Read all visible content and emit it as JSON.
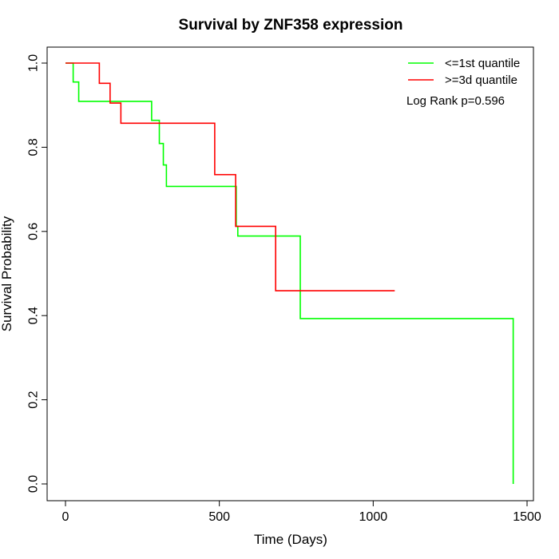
{
  "chart_data": {
    "type": "line",
    "title": "Survival by ZNF358 expression",
    "xlabel": "Time (Days)",
    "ylabel": "Survival Probability",
    "xlim": [
      0,
      1500
    ],
    "ylim": [
      0,
      1
    ],
    "x_ticks": [
      0,
      500,
      1000,
      1500
    ],
    "y_ticks": [
      0.0,
      0.2,
      0.4,
      0.6,
      0.8,
      1.0
    ],
    "x_tick_labels": [
      "0",
      "500",
      "1000",
      "1500"
    ],
    "y_tick_labels": [
      "0.0",
      "0.2",
      "0.4",
      "0.6",
      "0.8",
      "1.0"
    ],
    "grid": false,
    "legend_position": "top-right",
    "annotation": "Log Rank p=0.596",
    "series": [
      {
        "name": "<=1st quantile",
        "color": "#00ff00",
        "step": true,
        "x": [
          0,
          25,
          43,
          280,
          305,
          318,
          328,
          555,
          560,
          763,
          1455,
          1455
        ],
        "y": [
          1.0,
          0.955,
          0.909,
          0.864,
          0.809,
          0.758,
          0.707,
          0.612,
          0.589,
          0.393,
          0.393,
          0.0
        ]
      },
      {
        "name": ">=3d quantile",
        "color": "#ff0000",
        "step": true,
        "x": [
          0,
          110,
          145,
          180,
          485,
          553,
          683,
          1070
        ],
        "y": [
          1.0,
          0.952,
          0.905,
          0.857,
          0.735,
          0.612,
          0.459,
          0.459
        ]
      }
    ]
  }
}
